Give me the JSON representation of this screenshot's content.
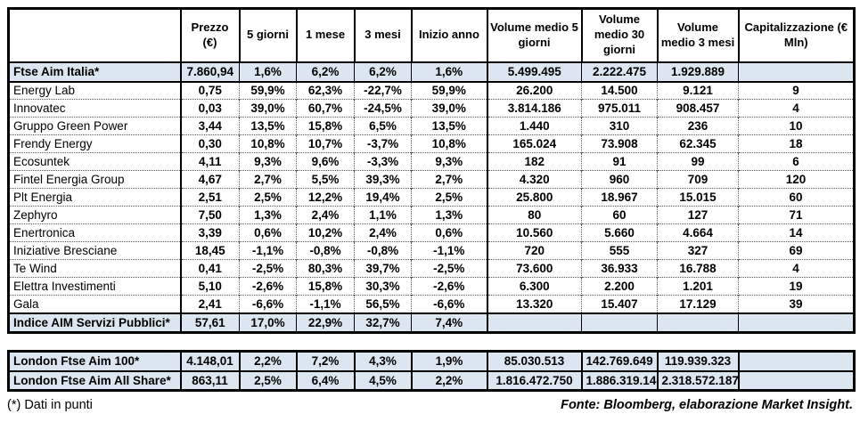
{
  "colors": {
    "row_highlight": "#DCE6F1",
    "border": "#000000",
    "background": "#FFFFFF"
  },
  "footer": {
    "note": "(*) Dati in punti",
    "source": "Fonte: Bloomberg, elaborazione Market Insight."
  },
  "chart_data": {
    "type": "table",
    "columns": [
      "",
      "Prezzo (€)",
      "5 giorni",
      "1 mese",
      "3 mesi",
      "Inizio anno",
      "Volume medio 5 giorni",
      "Volume medio 30 giorni",
      "Volume medio 3 mesi",
      "Capitalizzazione (€ Mln)"
    ],
    "index_row": {
      "name": "Ftse Aim Italia*",
      "values": [
        "7.860,94",
        "1,6%",
        "6,2%",
        "6,2%",
        "1,6%",
        "5.499.495",
        "2.222.475",
        "1.929.889",
        ""
      ]
    },
    "companies": [
      {
        "name": "Energy Lab",
        "values": [
          "0,75",
          "59,9%",
          "62,3%",
          "-22,7%",
          "59,9%",
          "26.200",
          "14.500",
          "9.121",
          "9"
        ]
      },
      {
        "name": "Innovatec",
        "values": [
          "0,03",
          "39,0%",
          "60,7%",
          "-24,5%",
          "39,0%",
          "3.814.186",
          "975.011",
          "908.457",
          "4"
        ]
      },
      {
        "name": "Gruppo Green Power",
        "values": [
          "3,44",
          "13,5%",
          "15,8%",
          "6,5%",
          "13,5%",
          "1.440",
          "310",
          "236",
          "10"
        ]
      },
      {
        "name": "Frendy Energy",
        "values": [
          "0,30",
          "10,8%",
          "10,7%",
          "-3,7%",
          "10,8%",
          "165.024",
          "73.908",
          "62.345",
          "18"
        ]
      },
      {
        "name": "Ecosuntek",
        "values": [
          "4,11",
          "9,3%",
          "9,6%",
          "-3,3%",
          "9,3%",
          "182",
          "91",
          "99",
          "6"
        ]
      },
      {
        "name": "Fintel Energia Group",
        "values": [
          "4,67",
          "2,7%",
          "5,5%",
          "39,3%",
          "2,7%",
          "4.320",
          "960",
          "709",
          "120"
        ]
      },
      {
        "name": "Plt Energia",
        "values": [
          "2,51",
          "2,5%",
          "12,2%",
          "19,4%",
          "2,5%",
          "25.800",
          "18.967",
          "15.015",
          "60"
        ]
      },
      {
        "name": "Zephyro",
        "values": [
          "7,50",
          "1,3%",
          "2,4%",
          "1,1%",
          "1,3%",
          "80",
          "60",
          "127",
          "71"
        ]
      },
      {
        "name": "Enertronica",
        "values": [
          "3,39",
          "0,6%",
          "10,2%",
          "2,4%",
          "0,6%",
          "10.560",
          "5.660",
          "4.664",
          "14"
        ]
      },
      {
        "name": "Iniziative Bresciane",
        "values": [
          "18,45",
          "-1,1%",
          "-0,8%",
          "-0,8%",
          "-1,1%",
          "720",
          "555",
          "327",
          "69"
        ]
      },
      {
        "name": "Te Wind",
        "values": [
          "0,41",
          "-2,5%",
          "80,3%",
          "39,7%",
          "-2,5%",
          "73.600",
          "36.933",
          "16.788",
          "4"
        ]
      },
      {
        "name": "Elettra Investimenti",
        "values": [
          "5,10",
          "-2,6%",
          "15,8%",
          "30,3%",
          "-2,6%",
          "6.300",
          "2.200",
          "1.201",
          "19"
        ]
      },
      {
        "name": "Gala",
        "values": [
          "2,41",
          "-6,6%",
          "-1,1%",
          "56,5%",
          "-6,6%",
          "13.320",
          "15.407",
          "17.129",
          "39"
        ]
      }
    ],
    "aim_index_row": {
      "name": "Indice AIM Servizi Pubblici*",
      "values": [
        "57,61",
        "17,0%",
        "22,9%",
        "32,7%",
        "7,4%",
        "",
        "",
        "",
        ""
      ]
    },
    "london_rows": [
      {
        "name": "London Ftse Aim 100*",
        "values": [
          "4.148,01",
          "2,2%",
          "7,2%",
          "4,3%",
          "1,9%",
          "85.030.513",
          "142.769.649",
          "119.939.323",
          ""
        ]
      },
      {
        "name": "London Ftse Aim All Share*",
        "values": [
          "863,11",
          "2,5%",
          "6,4%",
          "4,5%",
          "2,2%",
          "1.816.472.750",
          "1.886.319.145",
          "2.318.572.187",
          ""
        ]
      }
    ]
  }
}
